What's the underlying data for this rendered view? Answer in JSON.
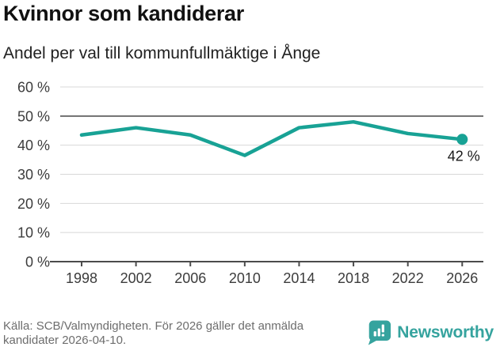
{
  "header": {
    "title": "Kvinnor som kandiderar",
    "subtitle": "Andel per val till kommunfullmäktige i Ånge"
  },
  "chart_data": {
    "type": "line",
    "title": "Kvinnor som kandiderar",
    "subtitle": "Andel per val till kommunfullmäktige i Ånge",
    "categories": [
      "1998",
      "2002",
      "2006",
      "2010",
      "2014",
      "2018",
      "2022",
      "2026"
    ],
    "values": [
      43.5,
      46,
      43.5,
      36.5,
      46,
      48,
      44,
      42
    ],
    "unit": "%",
    "xlabel": "",
    "ylabel": "",
    "ylim": [
      0,
      60
    ],
    "yticks": [
      60,
      50,
      40,
      30,
      20,
      10,
      0
    ],
    "ytick_labels": [
      "60 %",
      "50 %",
      "40 %",
      "30 %",
      "20 %",
      "10 %",
      "0 %"
    ],
    "reference_line": 50,
    "grid": true,
    "legend": "none",
    "line_color": "#18a295",
    "end_marker": true,
    "end_label": "42 %"
  },
  "footer": {
    "source_lines": [
      "Källa: SCB/Valmyndigheten. För 2026 gäller det anmälda",
      "kandidater 2026-04-10."
    ],
    "logo_text": "Newsworthy"
  },
  "colors": {
    "line": "#18a295",
    "logo_teal": "#35a39e",
    "grid_light": "#d8d8d8",
    "grid_reference": "#6f6f6f",
    "axis": "#4b4b4b",
    "source_text": "#6d6d6d"
  }
}
